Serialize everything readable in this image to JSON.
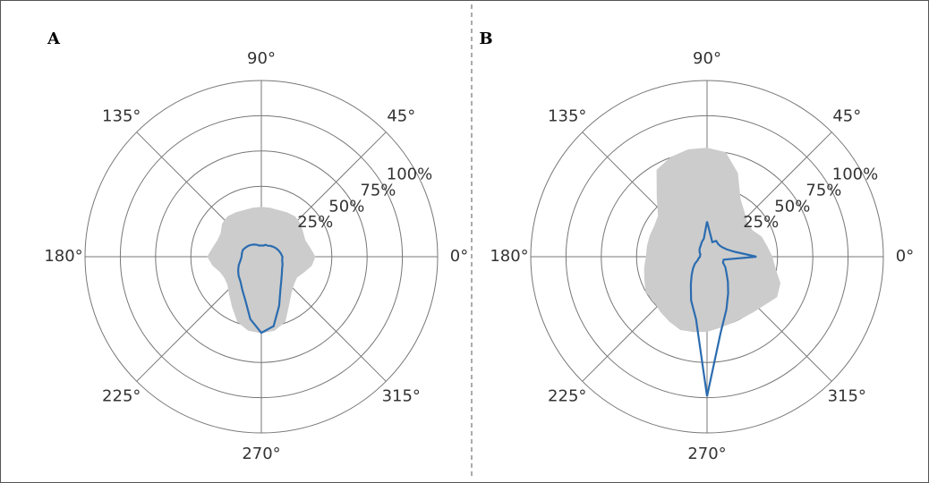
{
  "chart_data": [
    {
      "type": "polar",
      "title": "A",
      "theta": [
        0,
        10,
        20,
        30,
        40,
        50,
        60,
        70,
        80,
        90,
        100,
        110,
        120,
        130,
        140,
        150,
        160,
        170,
        180,
        190,
        200,
        210,
        220,
        230,
        240,
        250,
        260,
        270,
        280,
        290,
        300,
        310,
        320,
        330,
        340,
        350
      ],
      "series": [
        {
          "color": "#cccccc",
          "style": "area",
          "values": [
            13,
            10,
            8,
            9,
            11,
            12,
            11,
            10,
            10,
            10,
            10,
            10,
            11,
            12,
            11,
            8,
            8,
            10,
            13,
            10,
            6,
            5,
            6,
            10,
            16,
            24,
            28,
            29,
            28,
            24,
            14,
            8,
            5,
            4,
            7,
            11
          ]
        },
        {
          "color": "#2b6cb0",
          "style": "line",
          "values": [
            -10,
            -11,
            -12,
            -13,
            -14,
            -15,
            -16,
            -16,
            -17,
            -17,
            -17,
            -16,
            -15,
            -14,
            -13,
            -12,
            -11,
            -11,
            -11,
            -10,
            -8,
            -6,
            -4,
            -2,
            2,
            8,
            20,
            29,
            25,
            12,
            2,
            -3,
            -6,
            -8,
            -9,
            -10
          ]
        }
      ],
      "rlim": [
        -25,
        100
      ],
      "rticks": [
        {
          "value": 25,
          "label": "25%"
        },
        {
          "value": 50,
          "label": "50%"
        },
        {
          "value": 75,
          "label": "75%"
        },
        {
          "value": 100,
          "label": "100%"
        }
      ],
      "thetaticks": [
        {
          "value": 0,
          "label": "0°"
        },
        {
          "value": 45,
          "label": "45°"
        },
        {
          "value": 90,
          "label": "90°"
        },
        {
          "value": 135,
          "label": "135°"
        },
        {
          "value": 180,
          "label": "180°"
        },
        {
          "value": 225,
          "label": "225°"
        },
        {
          "value": 270,
          "label": "270°"
        },
        {
          "value": 315,
          "label": "315°"
        }
      ],
      "grid": true
    },
    {
      "type": "polar",
      "title": "B",
      "theta": [
        0,
        10,
        20,
        30,
        40,
        50,
        60,
        70,
        80,
        90,
        100,
        110,
        120,
        130,
        140,
        150,
        160,
        170,
        180,
        190,
        200,
        210,
        220,
        230,
        240,
        250,
        260,
        270,
        280,
        290,
        300,
        310,
        320,
        330,
        340,
        350
      ],
      "series": [
        {
          "color": "#cccccc",
          "style": "area",
          "values": [
            21,
            18,
            16,
            12,
            12,
            16,
            22,
            38,
            50,
            52,
            52,
            50,
            46,
            30,
            20,
            18,
            18,
            18,
            18,
            20,
            22,
            25,
            24,
            26,
            28,
            30,
            29,
            28,
            26,
            25,
            25,
            26,
            28,
            32,
            30,
            24
          ]
        },
        {
          "color": "#2b6cb0",
          "style": "line",
          "values": [
            10,
            -5,
            -10,
            -12,
            -13,
            -13,
            -12,
            -14,
            -10,
            0,
            -12,
            -14,
            -16,
            -17,
            -18,
            -19,
            -20,
            -20,
            -20,
            -19,
            -18,
            -15,
            -12,
            -8,
            -2,
            8,
            20,
            74,
            30,
            15,
            5,
            -2,
            -7,
            -10,
            -13,
            -13
          ]
        }
      ],
      "rlim": [
        -25,
        100
      ],
      "rticks": [
        {
          "value": 25,
          "label": "25%"
        },
        {
          "value": 50,
          "label": "50%"
        },
        {
          "value": 75,
          "label": "75%"
        },
        {
          "value": 100,
          "label": "100%"
        }
      ],
      "thetaticks": [
        {
          "value": 0,
          "label": "0°"
        },
        {
          "value": 45,
          "label": "45°"
        },
        {
          "value": 90,
          "label": "90°"
        },
        {
          "value": 135,
          "label": "135°"
        },
        {
          "value": 180,
          "label": "180°"
        },
        {
          "value": 225,
          "label": "225°"
        },
        {
          "value": 270,
          "label": "270°"
        },
        {
          "value": 315,
          "label": "315°"
        }
      ],
      "grid": true
    }
  ]
}
